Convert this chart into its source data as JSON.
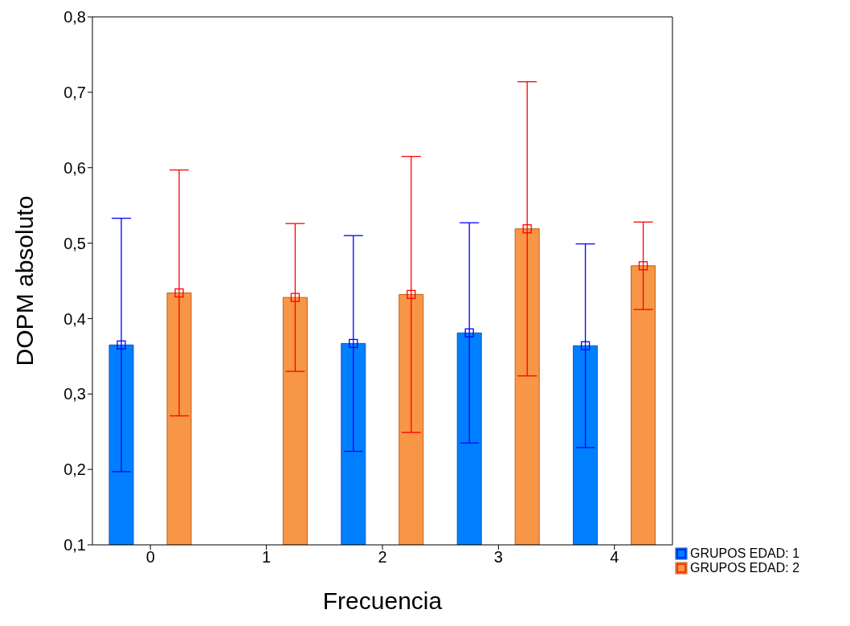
{
  "chart_data": {
    "type": "bar",
    "xlabel": "Frecuencia",
    "ylabel": "DOPM absoluto",
    "categories": [
      "0",
      "1",
      "2",
      "3",
      "4"
    ],
    "series": [
      {
        "name": "GRUPOS EDAD: 1",
        "color": "#0080ff",
        "values": [
          0.365,
          null,
          0.367,
          0.381,
          0.364
        ],
        "errors": [
          0.168,
          null,
          0.143,
          0.146,
          0.135
        ]
      },
      {
        "name": "GRUPOS EDAD: 2",
        "color": "#f79646",
        "values": [
          0.434,
          0.428,
          0.432,
          0.519,
          0.47
        ],
        "errors": [
          0.163,
          0.098,
          0.183,
          0.195,
          0.058
        ]
      }
    ],
    "ylim": [
      0.1,
      0.8
    ],
    "yticks": [
      {
        "value": 0.1,
        "label": "0,1"
      },
      {
        "value": 0.2,
        "label": "0,2"
      },
      {
        "value": 0.3,
        "label": "0,3"
      },
      {
        "value": 0.4,
        "label": "0,4"
      },
      {
        "value": 0.5,
        "label": "0,5"
      },
      {
        "value": 0.6,
        "label": "0,6"
      },
      {
        "value": 0.7,
        "label": "0,7"
      },
      {
        "value": 0.8,
        "label": "0,8"
      }
    ],
    "marker": "square",
    "grid": false,
    "legend": "bottom right"
  }
}
